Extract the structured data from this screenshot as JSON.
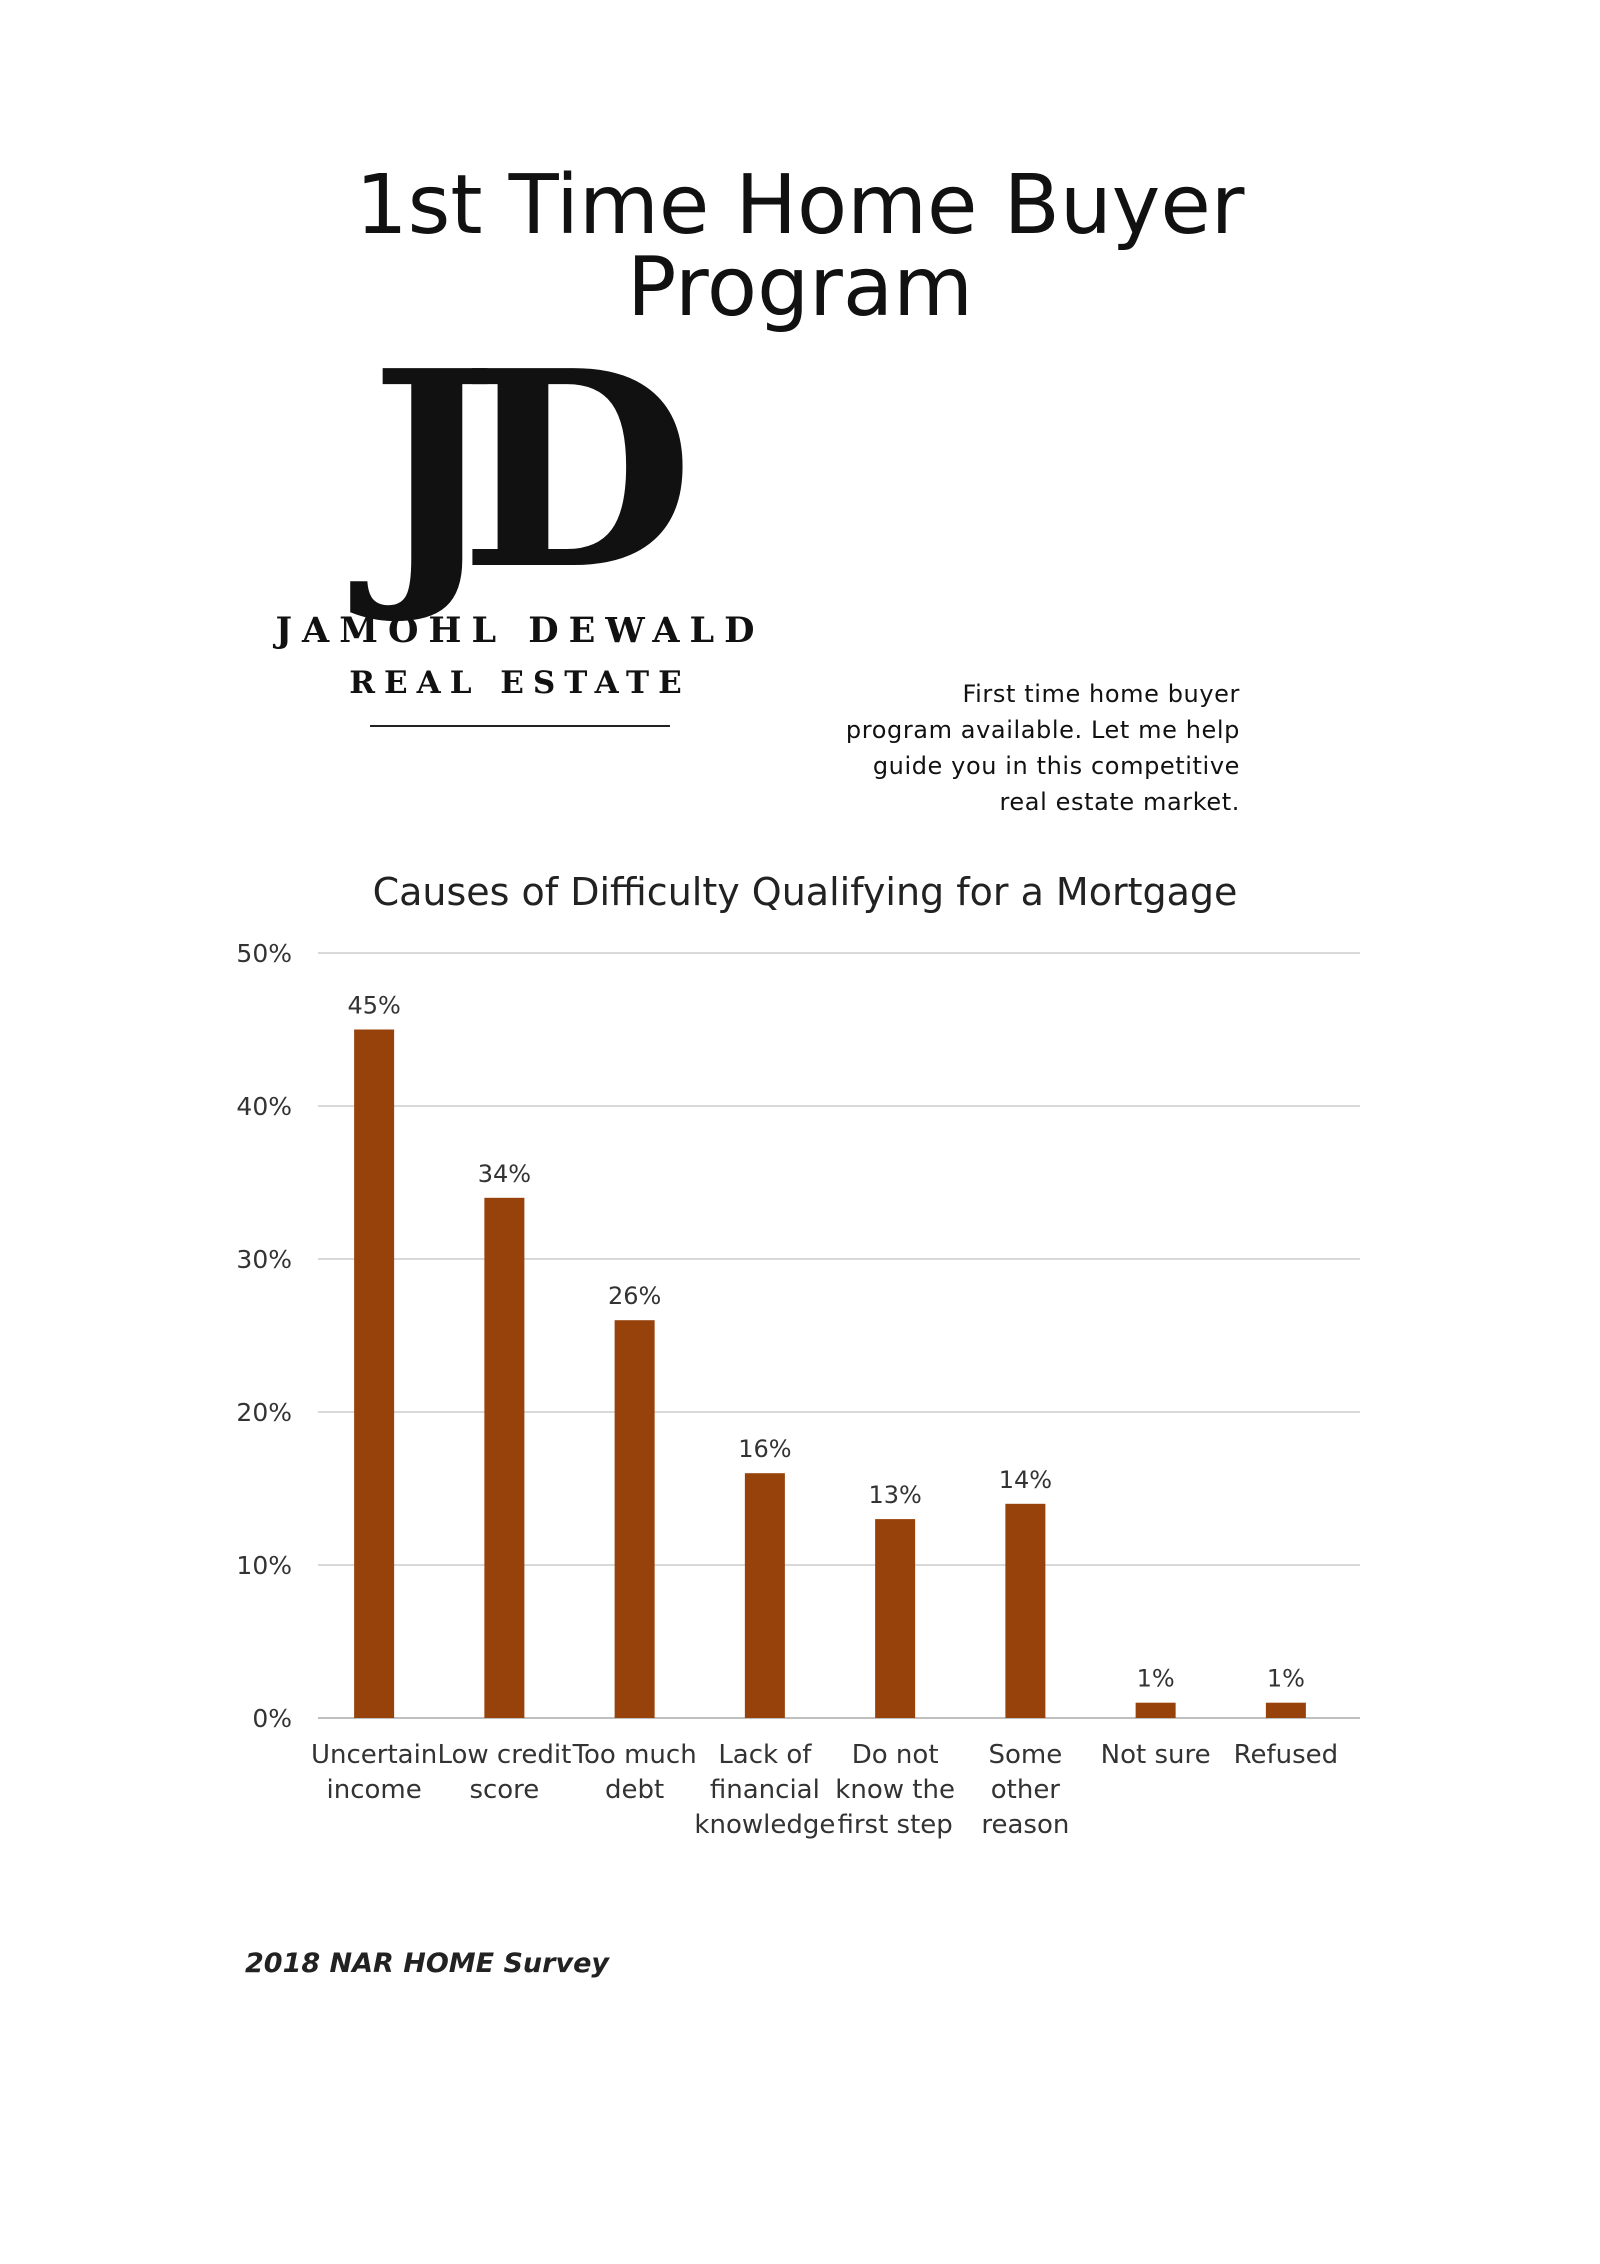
{
  "page": {
    "title": "1st Time Home Buyer Program"
  },
  "logo": {
    "monogram": "JD",
    "name": "JAMOHL DEWALD",
    "subtitle": "REAL ESTATE"
  },
  "blurb": {
    "lines": [
      "First time home buyer",
      "program available. Let me help",
      "guide you in this competitive",
      "real estate market."
    ]
  },
  "chart_data": {
    "type": "bar",
    "title": "Causes of Difficulty Qualifying for a Mortgage",
    "categories": [
      [
        "Uncertain",
        "income"
      ],
      [
        "Low credit",
        "score"
      ],
      [
        "Too much",
        "debt"
      ],
      [
        "Lack of",
        "financial",
        "knowledge"
      ],
      [
        "Do not",
        "know the",
        "first step"
      ],
      [
        "Some",
        "other",
        "reason"
      ],
      [
        "Not sure"
      ],
      [
        "Refused"
      ]
    ],
    "values": [
      45,
      34,
      26,
      16,
      13,
      14,
      1,
      1
    ],
    "data_labels": [
      "45%",
      "34%",
      "26%",
      "16%",
      "13%",
      "14%",
      "1%",
      "1%"
    ],
    "y_ticks": [
      "0%",
      "10%",
      "20%",
      "30%",
      "40%",
      "50%"
    ],
    "ylim": [
      0,
      50
    ],
    "xlabel": "",
    "ylabel": "",
    "grid": true,
    "bar_color": "#97420b",
    "grid_color": "#d9d9d9"
  },
  "source": {
    "text": "2018 NAR HOME Survey"
  }
}
